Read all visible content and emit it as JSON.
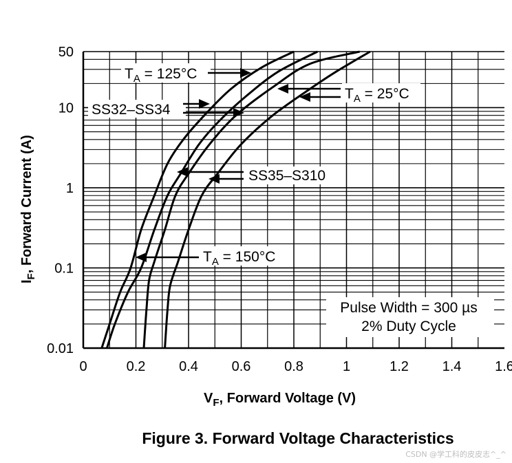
{
  "chart_data": {
    "type": "line",
    "xlabel_main": "V",
    "xlabel_sub": "F",
    "xlabel_rest": ", Forward Voltage (V)",
    "ylabel_main": "I",
    "ylabel_sub": "F",
    "ylabel_rest": ", Forward Current (A)",
    "xlim": [
      0,
      1.6
    ],
    "ylim": [
      0.01,
      50
    ],
    "y_scale": "log",
    "grid": true,
    "x_ticks": [
      {
        "value": 0,
        "label": "0"
      },
      {
        "value": 0.2,
        "label": "0.2"
      },
      {
        "value": 0.4,
        "label": "0.4"
      },
      {
        "value": 0.6,
        "label": "0.6"
      },
      {
        "value": 0.8,
        "label": "0.8"
      },
      {
        "value": 1.0,
        "label": "1"
      },
      {
        "value": 1.2,
        "label": "1.2"
      },
      {
        "value": 1.4,
        "label": "1.4"
      },
      {
        "value": 1.6,
        "label": "1.6"
      }
    ],
    "y_ticks": [
      {
        "value": 0.01,
        "label": "0.01"
      },
      {
        "value": 0.1,
        "label": "0.1"
      },
      {
        "value": 1,
        "label": "1"
      },
      {
        "value": 10,
        "label": "10"
      },
      {
        "value": 50,
        "label": "50"
      }
    ],
    "series": [
      {
        "points": [
          [
            0.07,
            0.01
          ],
          [
            0.1,
            0.02
          ],
          [
            0.14,
            0.05
          ],
          [
            0.18,
            0.1
          ],
          [
            0.22,
            0.3
          ],
          [
            0.27,
            0.8
          ],
          [
            0.32,
            2
          ],
          [
            0.38,
            4
          ],
          [
            0.46,
            8
          ],
          [
            0.56,
            17
          ],
          [
            0.68,
            32
          ],
          [
            0.8,
            50
          ]
        ]
      },
      {
        "points": [
          [
            0.09,
            0.01
          ],
          [
            0.12,
            0.02
          ],
          [
            0.17,
            0.05
          ],
          [
            0.22,
            0.1
          ],
          [
            0.27,
            0.3
          ],
          [
            0.32,
            0.8
          ],
          [
            0.37,
            1.5
          ],
          [
            0.44,
            3.5
          ],
          [
            0.52,
            7
          ],
          [
            0.62,
            14
          ],
          [
            0.74,
            28
          ],
          [
            0.89,
            50
          ]
        ]
      },
      {
        "points": [
          [
            0.23,
            0.01
          ],
          [
            0.24,
            0.03
          ],
          [
            0.25,
            0.07
          ],
          [
            0.27,
            0.12
          ],
          [
            0.31,
            0.3
          ],
          [
            0.35,
            0.8
          ],
          [
            0.4,
            1.5
          ],
          [
            0.48,
            3.5
          ],
          [
            0.58,
            8
          ],
          [
            0.72,
            18
          ],
          [
            0.86,
            35
          ],
          [
            1.05,
            50
          ]
        ]
      },
      {
        "points": [
          [
            0.31,
            0.01
          ],
          [
            0.32,
            0.03
          ],
          [
            0.33,
            0.06
          ],
          [
            0.36,
            0.12
          ],
          [
            0.4,
            0.3
          ],
          [
            0.45,
            0.8
          ],
          [
            0.51,
            1.5
          ],
          [
            0.6,
            3.5
          ],
          [
            0.72,
            8
          ],
          [
            0.86,
            17
          ],
          [
            0.96,
            28
          ],
          [
            1.09,
            50
          ]
        ]
      }
    ],
    "annotations": [
      {
        "main": "T",
        "sub": "A",
        "rest": " = 125°C"
      },
      {
        "main": "SS32–SS34",
        "sub": "",
        "rest": ""
      },
      {
        "main": "T",
        "sub": "A",
        "rest": " = 25°C"
      },
      {
        "main": "SS35–S310",
        "sub": "",
        "rest": ""
      },
      {
        "main": "T",
        "sub": "A",
        "rest": " = 150°C"
      }
    ],
    "note": [
      "Pulse Width = 300 µs",
      "2% Duty Cycle"
    ],
    "title": "Figure 3. Forward Voltage Characteristics"
  },
  "watermark": "CSDN @学工科的皮皮志^_^"
}
